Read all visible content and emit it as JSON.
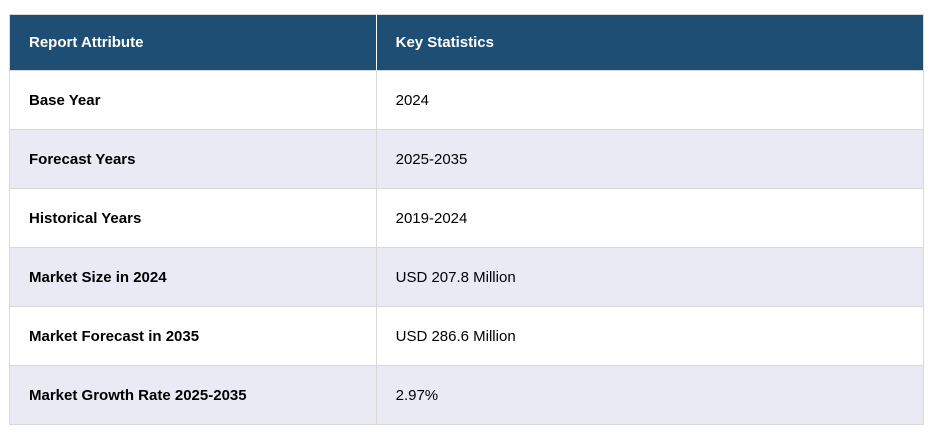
{
  "table": {
    "headers": [
      {
        "label": "Report Attribute"
      },
      {
        "label": "Key Statistics"
      }
    ],
    "rows": [
      {
        "attribute": "Base Year",
        "value": "2024"
      },
      {
        "attribute": "Forecast Years",
        "value": "2025-2035"
      },
      {
        "attribute": "Historical Years",
        "value": "2019-2024"
      },
      {
        "attribute": "Market Size in 2024",
        "value": "USD 207.8 Million"
      },
      {
        "attribute": "Market Forecast in 2035",
        "value": "USD 286.6 Million"
      },
      {
        "attribute": "Market Growth Rate 2025-2035",
        "value": "2.97%"
      }
    ],
    "colors": {
      "header_bg": "#1f4e74",
      "header_text": "#ffffff",
      "row_bg": "#ffffff",
      "row_alt_bg": "#e9eaf4",
      "border": "#d9d9d9",
      "header_divider": "#ffffff",
      "body_text": "#000000"
    }
  },
  "chart_data": {
    "type": "table",
    "title": "",
    "columns": [
      "Report Attribute",
      "Key Statistics"
    ],
    "rows": [
      [
        "Base Year",
        "2024"
      ],
      [
        "Forecast Years",
        "2025-2035"
      ],
      [
        "Historical Years",
        "2019-2024"
      ],
      [
        "Market Size in 2024",
        "USD 207.8 Million"
      ],
      [
        "Market Forecast in 2035",
        "USD 286.6 Million"
      ],
      [
        "Market Growth Rate 2025-2035",
        "2.97%"
      ]
    ]
  }
}
